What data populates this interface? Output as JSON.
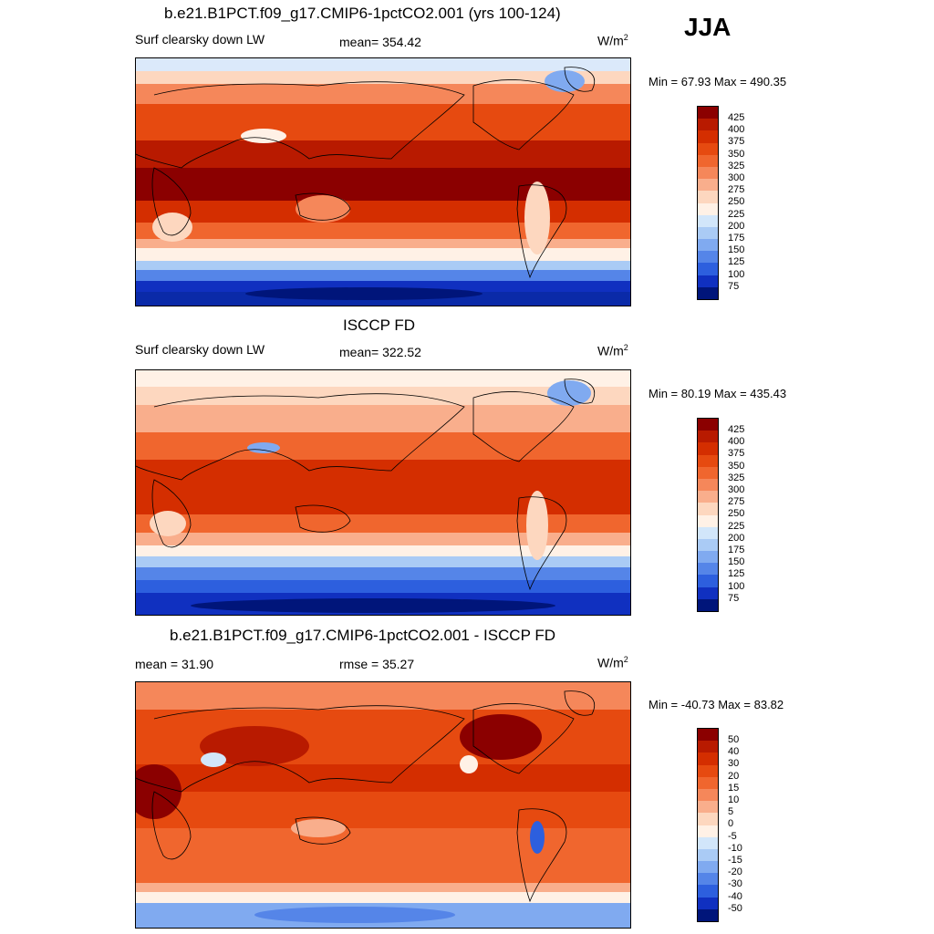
{
  "season": "JJA",
  "units_base": "W/m",
  "units_exp": "2",
  "panels": [
    {
      "title": "b.e21.B1PCT.f09_g17.CMIP6-1pctCO2.001 (yrs 100-124)",
      "left_label": "Surf clearsky down LW",
      "center_label": "mean= 354.42",
      "minmax": "Min =  67.93 Max = 490.35",
      "colorbar_levels": [
        "425",
        "400",
        "375",
        "350",
        "325",
        "300",
        "275",
        "250",
        "225",
        "200",
        "175",
        "150",
        "125",
        "100",
        "75"
      ]
    },
    {
      "title": "ISCCP FD",
      "left_label": "Surf clearsky down LW",
      "center_label": "mean= 322.52",
      "minmax": "Min =  80.19 Max = 435.43",
      "colorbar_levels": [
        "425",
        "400",
        "375",
        "350",
        "325",
        "300",
        "275",
        "250",
        "225",
        "200",
        "175",
        "150",
        "125",
        "100",
        "75"
      ]
    },
    {
      "title": "b.e21.B1PCT.f09_g17.CMIP6-1pctCO2.001 - ISCCP FD",
      "left_label": "mean =  31.90",
      "center_label": "rmse =  35.27",
      "minmax": "Min = -40.73 Max =  83.82",
      "colorbar_levels": [
        "50",
        "40",
        "30",
        "20",
        "15",
        "10",
        "5",
        "0",
        "-5",
        "-10",
        "-15",
        "-20",
        "-30",
        "-40",
        "-50"
      ]
    }
  ],
  "colors": {
    "scale": [
      "#8b0000",
      "#b81a00",
      "#d42e00",
      "#e64a10",
      "#f0662e",
      "#f5875a",
      "#f9ae8c",
      "#fdd7bf",
      "#fff1e6",
      "#d2e6fa",
      "#aacbf5",
      "#80aaf0",
      "#5585e8",
      "#2d5fde",
      "#1030c0",
      "#00157a"
    ]
  }
}
